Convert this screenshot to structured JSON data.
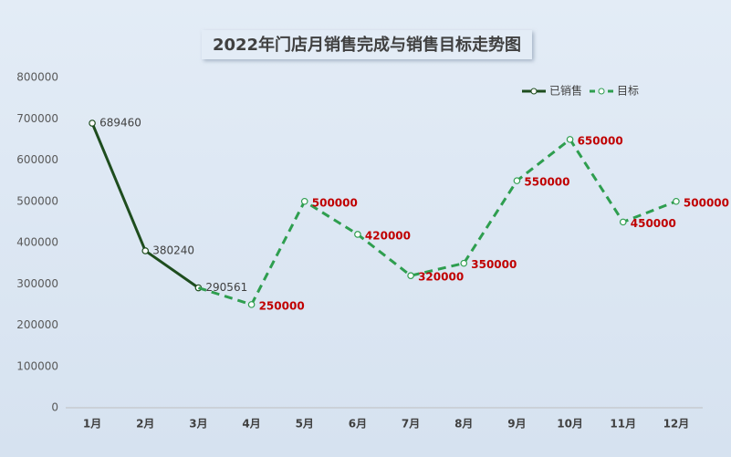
{
  "chart_data": {
    "type": "line",
    "title": "2022年门店月销售完成与销售目标走势图",
    "categories": [
      "1月",
      "2月",
      "3月",
      "4月",
      "5月",
      "6月",
      "7月",
      "8月",
      "9月",
      "10月",
      "11月",
      "12月"
    ],
    "series": [
      {
        "name": "已销售",
        "color": "#1e4d1e",
        "dash": false,
        "label_color": "#404040",
        "values": [
          689460,
          380240,
          290561,
          null,
          null,
          null,
          null,
          null,
          null,
          null,
          null,
          null
        ]
      },
      {
        "name": "目标",
        "color": "#2e9e4f",
        "dash": true,
        "label_color": "#c00000",
        "values": [
          null,
          null,
          null,
          250000,
          500000,
          420000,
          320000,
          350000,
          550000,
          650000,
          450000,
          500000
        ]
      }
    ],
    "ylim": [
      0,
      800000
    ],
    "yticks": [
      0,
      100000,
      200000,
      300000,
      400000,
      500000,
      600000,
      700000,
      800000
    ],
    "grid": false,
    "legend": "top-right"
  }
}
